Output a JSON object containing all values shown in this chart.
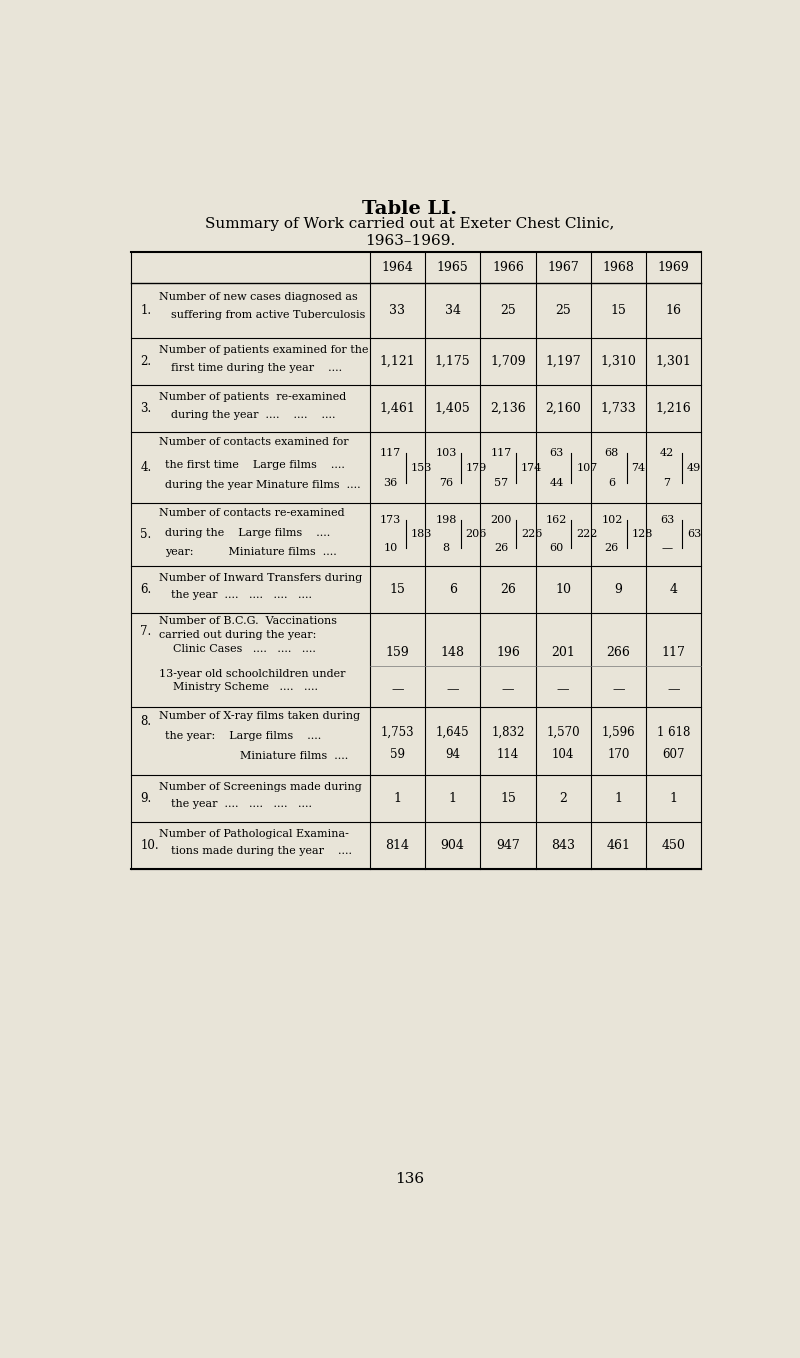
{
  "title_line1": "Table LI.",
  "title_line2": "Summary of Work carried out at Exeter Chest Clinic,",
  "title_line3": "1963–1969.",
  "background_color": "#e8e4d8",
  "page_number": "136",
  "years": [
    "1964",
    "1965",
    "1966",
    "1967",
    "1968",
    "1969"
  ],
  "rows": [
    {
      "num": "1.",
      "label_lines": [
        "Number of new cases diagnosed as",
        "suffering from active Tuberculosis"
      ],
      "values": [
        "33",
        "34",
        "25",
        "25",
        "15",
        "16"
      ],
      "type": "simple"
    },
    {
      "num": "2.",
      "label_lines": [
        "Number of patients examined for the",
        "first time during the year    ...."
      ],
      "values": [
        "1,121",
        "1,175",
        "1,709",
        "1,197",
        "1,310",
        "1,301"
      ],
      "type": "simple"
    },
    {
      "num": "3.",
      "label_lines": [
        "Number of patients  re-examined",
        "during the year  ....    ....    ...."
      ],
      "values": [
        "1,461",
        "1,405",
        "2,136",
        "2,160",
        "1,733",
        "1,216"
      ],
      "type": "simple"
    },
    {
      "num": "4.",
      "label_lines": [
        "Number of contacts examined for",
        "the first time    Large films    ....",
        "during the year Minature films  ...."
      ],
      "top_values": [
        "117",
        "103",
        "117",
        "63",
        "68",
        "42"
      ],
      "bottom_values": [
        "36",
        "76",
        "57",
        "44",
        "6",
        "7"
      ],
      "bracket_values": [
        "153",
        "179",
        "174",
        "107",
        "74",
        "49"
      ],
      "type": "bracket"
    },
    {
      "num": "5.",
      "label_lines": [
        "Number of contacts re-examined",
        "during the    Large films    ....",
        "year:          Miniature films  ...."
      ],
      "top_values": [
        "173",
        "198",
        "200",
        "162",
        "102",
        "63"
      ],
      "bottom_values": [
        "10",
        "8",
        "26",
        "60",
        "26",
        "—"
      ],
      "bracket_values": [
        "183",
        "206",
        "226",
        "222",
        "128",
        "63"
      ],
      "type": "bracket"
    },
    {
      "num": "6.",
      "label_lines": [
        "Number of Inward Transfers during",
        "the year  ....   ....   ....   ...."
      ],
      "values": [
        "15",
        "6",
        "26",
        "10",
        "9",
        "4"
      ],
      "type": "simple"
    },
    {
      "num": "7.",
      "label_lines": [
        "Number of B.C.G.  Vaccinations",
        "carried out during the year:",
        "    Clinic Cases   ....   ....   ....",
        "13-year old schoolchildren under",
        "    Ministry Scheme   ....   ...."
      ],
      "clinic_values": [
        "159",
        "148",
        "196",
        "201",
        "266",
        "117"
      ],
      "ministry_values": [
        "—",
        "—",
        "—",
        "—",
        "—",
        "—"
      ],
      "type": "two_sub"
    },
    {
      "num": "8.",
      "label_lines": [
        "Number of X-ray films taken during",
        "the year:    Large films    ....",
        "                Miniature films  ...."
      ],
      "top_values": [
        "1,753",
        "1,645",
        "1,832",
        "1,570",
        "1,596",
        "1 618"
      ],
      "bottom_values": [
        "59",
        "94",
        "114",
        "104",
        "170",
        "607"
      ],
      "type": "two_row"
    },
    {
      "num": "9.",
      "label_lines": [
        "Number of Screenings made during",
        "the year  ....   ....   ....   ...."
      ],
      "values": [
        "1",
        "1",
        "15",
        "2",
        "1",
        "1"
      ],
      "type": "simple"
    },
    {
      "num": "10.",
      "label_lines": [
        "Number of Pathological Examina-",
        "tions made during the year    ...."
      ],
      "values": [
        "814",
        "904",
        "947",
        "843",
        "461",
        "450"
      ],
      "type": "simple"
    }
  ]
}
